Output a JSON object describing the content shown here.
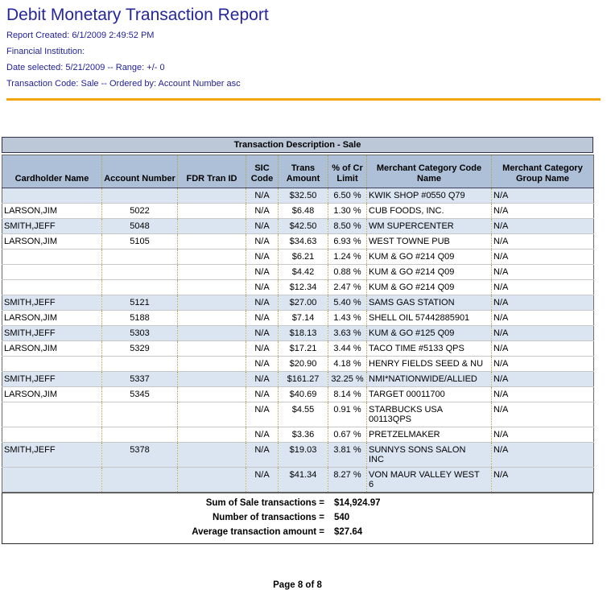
{
  "report": {
    "title": "Debit Monetary Transaction Report",
    "info_lines": [
      "Report Created: 6/1/2009 2:49:52 PM",
      "Financial Institution:",
      "Date selected: 5/21/2009 -- Range: +/- 0",
      "Transaction Code: Sale -- Ordered by: Account Number asc"
    ],
    "accent_color": "#f2a50c"
  },
  "table": {
    "banner": "Transaction Description - Sale",
    "columns": [
      "Cardholder Name",
      "Account Number",
      "FDR Tran ID",
      "SIC Code",
      "Trans Amount",
      "% of Cr Limit",
      "Merchant Category Code Name",
      "Merchant Category Group Name"
    ],
    "col_names": [
      "cardholder-name",
      "account-number",
      "fdr-tran-id",
      "sic-code",
      "trans-amount",
      "pct-of-cr-limit",
      "merchant-category-code-name",
      "merchant-category-group-name"
    ],
    "colors": {
      "banner_bg": "#bcc7d8",
      "header_bg": "#aec0d8",
      "alt_row_bg": "#dbe5f2",
      "separator_dotted": "#b2a24b"
    },
    "rows": [
      {
        "shade": "blue",
        "cells": [
          "",
          "",
          "",
          "N/A",
          "$32.50",
          "6.50 %",
          "KWIK SHOP #0550 Q79",
          "N/A"
        ]
      },
      {
        "shade": "white",
        "cells": [
          "LARSON,JIM",
          "5022",
          "",
          "N/A",
          "$6.48",
          "1.30 %",
          "CUB FOODS, INC.",
          "N/A"
        ]
      },
      {
        "shade": "blue",
        "cells": [
          "SMITH,JEFF",
          "5048",
          "",
          "N/A",
          "$42.50",
          "8.50 %",
          "WM SUPERCENTER",
          "N/A"
        ]
      },
      {
        "shade": "white",
        "cells": [
          "LARSON,JIM",
          "5105",
          "",
          "N/A",
          "$34.63",
          "6.93 %",
          "WEST TOWNE PUB",
          "N/A"
        ]
      },
      {
        "shade": "white",
        "cells": [
          "",
          "",
          "",
          "N/A",
          "$6.21",
          "1.24 %",
          "KUM & GO #214 Q09",
          "N/A"
        ]
      },
      {
        "shade": "white",
        "cells": [
          "",
          "",
          "",
          "N/A",
          "$4.42",
          "0.88 %",
          "KUM & GO #214 Q09",
          "N/A"
        ]
      },
      {
        "shade": "white",
        "cells": [
          "",
          "",
          "",
          "N/A",
          "$12.34",
          "2.47 %",
          "KUM & GO #214 Q09",
          "N/A"
        ]
      },
      {
        "shade": "blue",
        "cells": [
          "SMITH,JEFF",
          "5121",
          "",
          "N/A",
          "$27.00",
          "5.40 %",
          "SAMS GAS STATION",
          "N/A"
        ]
      },
      {
        "shade": "white",
        "cells": [
          "LARSON,JIM",
          "5188",
          "",
          "N/A",
          "$7.14",
          "1.43 %",
          "SHELL OIL 57442885901",
          "N/A"
        ]
      },
      {
        "shade": "blue",
        "cells": [
          "SMITH,JEFF",
          "5303",
          "",
          "N/A",
          "$18.13",
          "3.63 %",
          "KUM & GO #125 Q09",
          "N/A"
        ]
      },
      {
        "shade": "white",
        "cells": [
          "LARSON,JIM",
          "5329",
          "",
          "N/A",
          "$17.21",
          "3.44 %",
          "TACO TIME #5133 QPS",
          "N/A"
        ]
      },
      {
        "shade": "white",
        "cells": [
          "",
          "",
          "",
          "N/A",
          "$20.90",
          "4.18 %",
          "HENRY FIELDS SEED & NU",
          "N/A"
        ]
      },
      {
        "shade": "blue",
        "cells": [
          "SMITH,JEFF",
          "5337",
          "",
          "N/A",
          "$161.27",
          "32.25 %",
          "NMI*NATIONWIDE/ALLIED",
          "N/A"
        ]
      },
      {
        "shade": "white",
        "cells": [
          "LARSON,JIM",
          "5345",
          "",
          "N/A",
          "$40.69",
          "8.14 %",
          "TARGET 00011700",
          "N/A"
        ]
      },
      {
        "shade": "white",
        "cells": [
          "",
          "",
          "",
          "N/A",
          "$4.55",
          "0.91 %",
          "STARBUCKS USA\n00113QPS",
          "N/A"
        ]
      },
      {
        "shade": "white",
        "cells": [
          "",
          "",
          "",
          "N/A",
          "$3.36",
          "0.67 %",
          "PRETZELMAKER",
          "N/A"
        ]
      },
      {
        "shade": "blue",
        "cells": [
          "SMITH,JEFF",
          "5378",
          "",
          "N/A",
          "$19.03",
          "3.81 %",
          "SUNNYS SONS SALON\nINC",
          "N/A"
        ]
      },
      {
        "shade": "blue",
        "cells": [
          "",
          "",
          "",
          "N/A",
          "$41.34",
          "8.27 %",
          "VON MAUR VALLEY WEST\n6",
          "N/A"
        ]
      }
    ]
  },
  "summary": {
    "lines": [
      {
        "label": "Sum of Sale transactions =",
        "value": "$14,924.97"
      },
      {
        "label": "Number of transactions =",
        "value": "540"
      },
      {
        "label": "Average transaction amount =",
        "value": "$27.64"
      }
    ]
  },
  "footer": {
    "page_label": "Page 8 of 8"
  }
}
